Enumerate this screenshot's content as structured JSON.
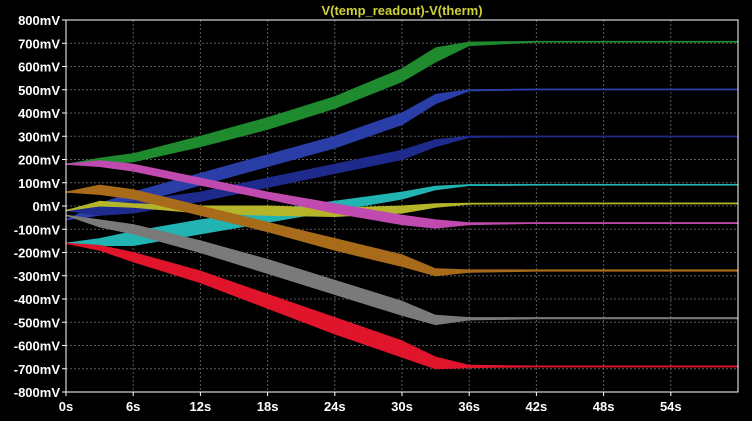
{
  "chart_data": {
    "type": "line",
    "title": "V(temp_readout)-V(therm)",
    "xlabel": "",
    "ylabel": "",
    "xlim": [
      0,
      60
    ],
    "ylim": [
      -800,
      800
    ],
    "x_ticks": [
      0,
      6,
      12,
      18,
      24,
      30,
      36,
      42,
      48,
      54
    ],
    "x_tick_labels": [
      "0s",
      "6s",
      "12s",
      "18s",
      "24s",
      "30s",
      "36s",
      "42s",
      "48s",
      "54s"
    ],
    "y_ticks": [
      800,
      700,
      600,
      500,
      400,
      300,
      200,
      100,
      0,
      -100,
      -200,
      -300,
      -400,
      -500,
      -600,
      -700,
      -800
    ],
    "y_tick_labels": [
      "800mV",
      "700mV",
      "600mV",
      "500mV",
      "400mV",
      "300mV",
      "200mV",
      "100mV",
      "0mV",
      "-100mV",
      "-200mV",
      "-300mV",
      "-400mV",
      "-500mV",
      "-600mV",
      "-700mV",
      "-800mV"
    ],
    "grid": true,
    "background": "#000000",
    "axis_color": "#ffffff",
    "grid_color": "#5a5a5a",
    "title_color": "#cfd23a",
    "tick_label_color": "#ffffff",
    "x_unit": "s",
    "y_unit": "mV",
    "series": [
      {
        "color": "#1f8a2e",
        "x": [
          0,
          3,
          6,
          12,
          18,
          24,
          30,
          33,
          36,
          42,
          60
        ],
        "y_upper": [
          180,
          205,
          225,
          300,
          380,
          470,
          590,
          680,
          705,
          708,
          708
        ],
        "y_lower": [
          180,
          180,
          190,
          255,
          330,
          420,
          535,
          620,
          690,
          705,
          705
        ]
      },
      {
        "color": "#2a3ea8",
        "x": [
          0,
          3,
          6,
          12,
          18,
          24,
          30,
          33,
          36,
          42,
          60
        ],
        "y_upper": [
          -60,
          10,
          60,
          140,
          220,
          300,
          400,
          480,
          500,
          503,
          503
        ],
        "y_lower": [
          -60,
          -40,
          10,
          90,
          170,
          250,
          350,
          440,
          495,
          500,
          500
        ]
      },
      {
        "color": "#1e2a8c",
        "x": [
          0,
          3,
          6,
          12,
          18,
          24,
          30,
          33,
          36,
          42,
          60
        ],
        "y_upper": [
          -20,
          0,
          20,
          60,
          120,
          180,
          240,
          285,
          300,
          300,
          300
        ],
        "y_lower": [
          -20,
          -40,
          -30,
          20,
          80,
          140,
          200,
          255,
          295,
          298,
          298
        ]
      },
      {
        "color": "#22b3b3",
        "x": [
          0,
          3,
          6,
          12,
          18,
          24,
          30,
          33,
          36,
          42,
          60
        ],
        "y_upper": [
          -160,
          -140,
          -110,
          -60,
          -20,
          20,
          60,
          85,
          92,
          92,
          92
        ],
        "y_lower": [
          -160,
          -170,
          -170,
          -120,
          -70,
          -20,
          30,
          70,
          88,
          90,
          90
        ]
      },
      {
        "color": "#b5b52a",
        "x": [
          0,
          3,
          6,
          12,
          18,
          24,
          30,
          33,
          36,
          42,
          60
        ],
        "y_upper": [
          -20,
          20,
          10,
          0,
          0,
          -10,
          0,
          10,
          12,
          12,
          12
        ],
        "y_lower": [
          -20,
          0,
          -5,
          -30,
          -40,
          -45,
          -30,
          -5,
          8,
          10,
          10
        ]
      },
      {
        "color": "#c04ab0",
        "x": [
          0,
          3,
          6,
          12,
          18,
          24,
          30,
          33,
          36,
          42,
          60
        ],
        "y_upper": [
          180,
          195,
          180,
          120,
          60,
          10,
          -40,
          -60,
          -72,
          -72,
          -72
        ],
        "y_lower": [
          180,
          170,
          150,
          90,
          30,
          -30,
          -80,
          -95,
          -80,
          -75,
          -75
        ]
      },
      {
        "color": "#a86b1a",
        "x": [
          0,
          3,
          6,
          12,
          18,
          24,
          30,
          33,
          36,
          42,
          60
        ],
        "y_upper": [
          60,
          90,
          70,
          0,
          -70,
          -140,
          -210,
          -270,
          -275,
          -275,
          -275
        ],
        "y_lower": [
          60,
          50,
          30,
          -40,
          -110,
          -190,
          -260,
          -300,
          -285,
          -280,
          -280
        ]
      },
      {
        "color": "#7a7a7a",
        "x": [
          0,
          3,
          6,
          12,
          18,
          24,
          30,
          33,
          36,
          42,
          60
        ],
        "y_upper": [
          -40,
          -60,
          -80,
          -150,
          -230,
          -320,
          -410,
          -470,
          -480,
          -480,
          -480
        ],
        "y_lower": [
          -40,
          -90,
          -120,
          -200,
          -290,
          -380,
          -470,
          -510,
          -490,
          -485,
          -485
        ]
      },
      {
        "color": "#e0142a",
        "x": [
          0,
          3,
          6,
          12,
          18,
          24,
          30,
          33,
          36,
          42,
          60
        ],
        "y_upper": [
          -160,
          -170,
          -200,
          -280,
          -380,
          -480,
          -580,
          -650,
          -685,
          -688,
          -688
        ],
        "y_lower": [
          -160,
          -190,
          -240,
          -330,
          -440,
          -550,
          -650,
          -700,
          -695,
          -692,
          -692
        ]
      }
    ]
  }
}
